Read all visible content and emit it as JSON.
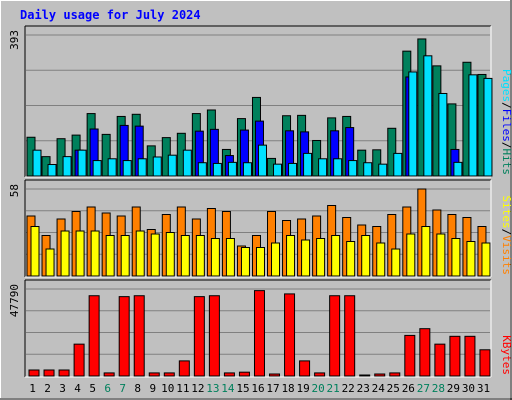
{
  "title": "Daily usage for July 2024",
  "chart_data": [
    {
      "type": "bar",
      "panel": "hits-files-pages",
      "categories": [
        "1",
        "2",
        "3",
        "4",
        "5",
        "6",
        "7",
        "8",
        "9",
        "10",
        "11",
        "12",
        "13",
        "14",
        "15",
        "16",
        "17",
        "18",
        "19",
        "20",
        "21",
        "22",
        "23",
        "24",
        "25",
        "26",
        "27",
        "28",
        "29",
        "30",
        "31"
      ],
      "ymax_label": "393",
      "ylim": [
        0,
        393
      ],
      "series": [
        {
          "name": "Hits",
          "color": "#00805c",
          "values": [
            108,
            54,
            104,
            114,
            174,
            116,
            166,
            172,
            84,
            107,
            119,
            174,
            184,
            74,
            160,
            219,
            49,
            168,
            169,
            99,
            162,
            166,
            72,
            73,
            133,
            348,
            382,
            307,
            201,
            317,
            283
          ]
        },
        {
          "name": "Files",
          "color": "#0000ff",
          "values": [
            0,
            0,
            0,
            72,
            131,
            0,
            141,
            139,
            0,
            0,
            0,
            125,
            130,
            57,
            128,
            153,
            0,
            126,
            123,
            0,
            126,
            135,
            0,
            0,
            0,
            276,
            0,
            0,
            74,
            0,
            0
          ]
        },
        {
          "name": "Pages",
          "color": "#00e0ff",
          "values": [
            72,
            32,
            54,
            72,
            43,
            48,
            43,
            48,
            53,
            58,
            72,
            37,
            35,
            38,
            37,
            86,
            33,
            35,
            63,
            48,
            48,
            43,
            37,
            33,
            63,
            290,
            335,
            230,
            38,
            282,
            272
          ]
        }
      ],
      "legend": [
        "Pages",
        "/",
        "Files",
        "/",
        "Hits"
      ]
    },
    {
      "type": "bar",
      "panel": "visits-sites",
      "categories": [
        "1",
        "2",
        "3",
        "4",
        "5",
        "6",
        "7",
        "8",
        "9",
        "10",
        "11",
        "12",
        "13",
        "14",
        "15",
        "16",
        "17",
        "18",
        "19",
        "20",
        "21",
        "22",
        "23",
        "24",
        "25",
        "26",
        "27",
        "28",
        "29",
        "30",
        "31"
      ],
      "ymax_label": "58",
      "ylim": [
        0,
        58
      ],
      "series": [
        {
          "name": "Visits",
          "color": "#ff8000",
          "values": [
            40,
            27,
            38,
            43,
            46,
            42,
            40,
            46,
            31,
            41,
            46,
            38,
            45,
            43,
            20,
            27,
            43,
            37,
            38,
            40,
            47,
            39,
            34,
            33,
            41,
            46,
            58,
            44,
            41,
            39,
            33
          ]
        },
        {
          "name": "Sites",
          "color": "#ffff00",
          "values": [
            33,
            18,
            30,
            30,
            30,
            27,
            27,
            30,
            28,
            29,
            27,
            27,
            25,
            25,
            19,
            19,
            22,
            27,
            24,
            25,
            27,
            23,
            27,
            22,
            18,
            28,
            33,
            28,
            25,
            23,
            22
          ]
        }
      ],
      "legend": [
        "Sites",
        "/",
        "Visits"
      ]
    },
    {
      "type": "bar",
      "panel": "kbytes",
      "categories": [
        "1",
        "2",
        "3",
        "4",
        "5",
        "6",
        "7",
        "8",
        "9",
        "10",
        "11",
        "12",
        "13",
        "14",
        "15",
        "16",
        "17",
        "18",
        "19",
        "20",
        "21",
        "22",
        "23",
        "24",
        "25",
        "26",
        "27",
        "28",
        "29",
        "30",
        "31"
      ],
      "ymax_label": "47790",
      "ylim": [
        0,
        47790
      ],
      "series": [
        {
          "name": "KBytes",
          "color": "#ff0000",
          "values": [
            3300,
            3300,
            3300,
            17500,
            44100,
            1700,
            43600,
            44100,
            1700,
            1700,
            8300,
            43600,
            44100,
            1700,
            2100,
            46900,
            1100,
            45100,
            8300,
            1700,
            44100,
            44100,
            500,
            1100,
            1700,
            22300,
            26000,
            17500,
            21800,
            21800,
            14400
          ]
        }
      ],
      "legend": [
        "KBytes"
      ]
    }
  ],
  "colors": {
    "panel_bg": "#c0c0c0",
    "frame_bg": "#ffffff",
    "gridline": "#808080",
    "title_color": "#0000ff",
    "weekend_label": "#00805c",
    "weekday_label": "#000000",
    "legend_separator": "#000000"
  },
  "weekend_days": [
    "6",
    "7",
    "13",
    "14",
    "20",
    "21",
    "27",
    "28"
  ]
}
